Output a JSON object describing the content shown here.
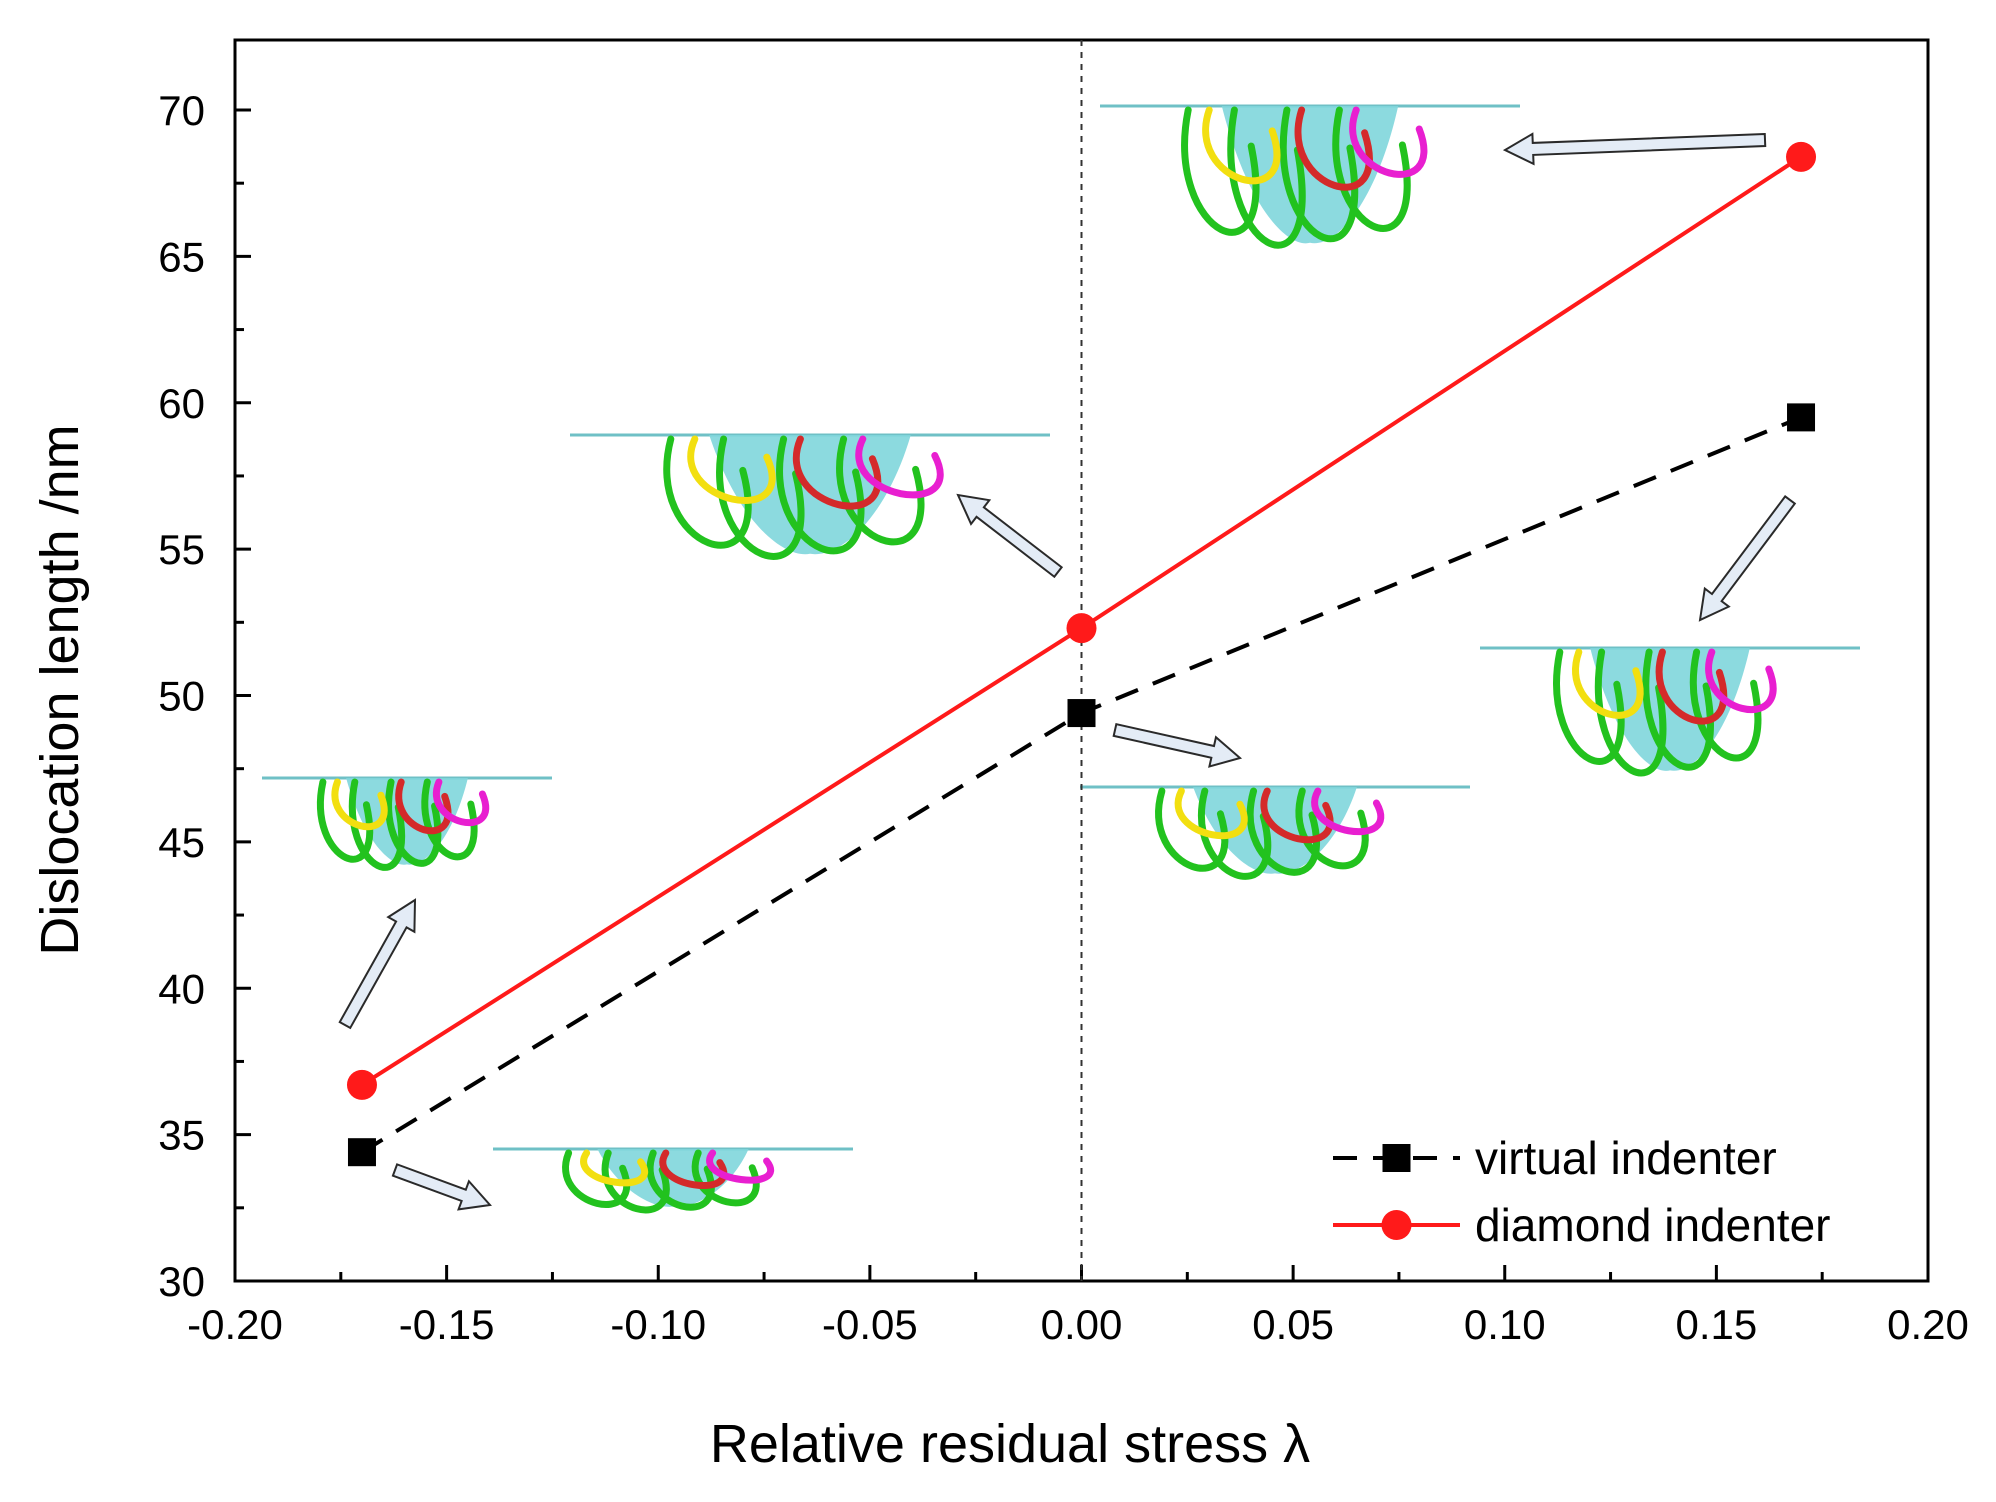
{
  "chart_data": {
    "type": "line",
    "xlabel": "Relative residual stress  λ",
    "ylabel": "Dislocation length    /nm",
    "xlim": [
      -0.2,
      0.2
    ],
    "ylim": [
      30,
      72.5
    ],
    "xticks": [
      "-0.20",
      "-0.15",
      "-0.10",
      "-0.05",
      "0.00",
      "0.05",
      "0.10",
      "0.15",
      "0.20"
    ],
    "yticks": [
      "30",
      "35",
      "40",
      "45",
      "50",
      "55",
      "60",
      "65",
      "70"
    ],
    "grid": false,
    "reference_line": {
      "x": 0.0,
      "style": "dotted"
    },
    "legend_position": "bottom-right",
    "series": [
      {
        "name": "virtual indenter",
        "color": "#000000",
        "line_style": "dashed",
        "marker": "square",
        "x": [
          -0.17,
          0.0,
          0.17
        ],
        "y": [
          34.4,
          49.4,
          59.5
        ]
      },
      {
        "name": "diamond indenter",
        "color": "#ff1a1a",
        "line_style": "solid",
        "marker": "circle",
        "x": [
          -0.17,
          0.0,
          0.17
        ],
        "y": [
          36.7,
          52.3,
          68.4
        ]
      }
    ],
    "insets": [
      {
        "name": "dislocation-structure-inset",
        "point": "virtual indenter at -0.17"
      },
      {
        "name": "dislocation-structure-inset",
        "point": "diamond indenter at -0.17"
      },
      {
        "name": "dislocation-structure-inset",
        "point": "diamond indenter at 0.00"
      },
      {
        "name": "dislocation-structure-inset",
        "point": "virtual indenter at 0.00"
      },
      {
        "name": "dislocation-structure-inset",
        "point": "diamond indenter at 0.17"
      },
      {
        "name": "dislocation-structure-inset",
        "point": "virtual indenter at 0.17"
      }
    ],
    "colors": {
      "indenter_surface": "#7fd6dc",
      "dislocation_green": "#22c21e",
      "dislocation_yellow": "#f2df10",
      "dislocation_red": "#d42a2a",
      "dislocation_magenta": "#e81fd0",
      "dislocation_blue": "#1f2bd6",
      "arrow_fill": "#e4ecf6"
    }
  }
}
